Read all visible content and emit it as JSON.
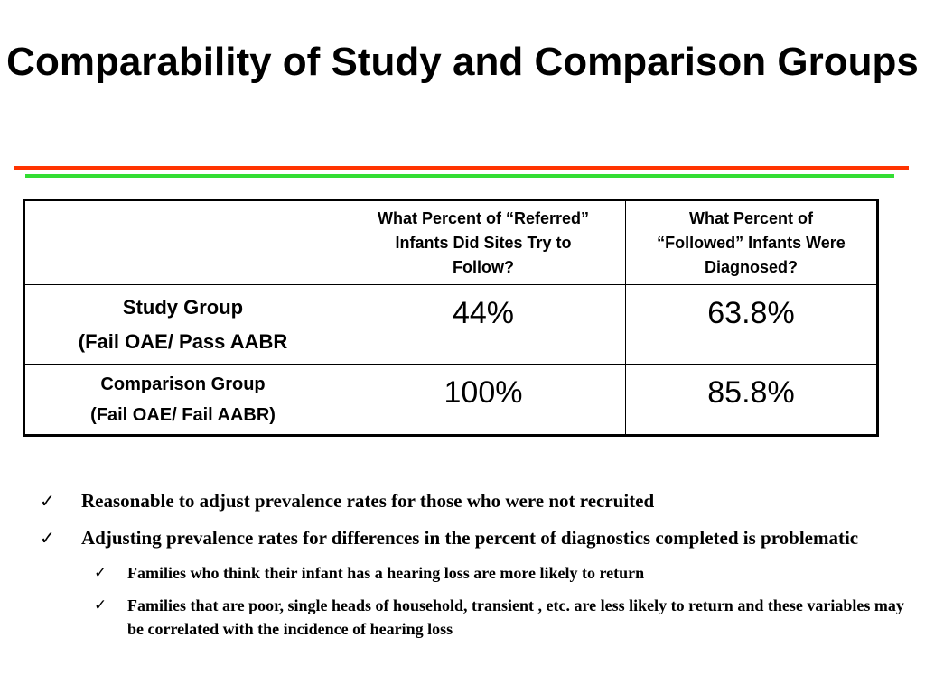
{
  "slide": {
    "title": "Comparability of Study and Comparison Groups"
  },
  "table": {
    "header": {
      "col0": "",
      "col1": "What Percent of “Referred” Infants Did Sites Try to Follow?",
      "col2": "What Percent of “Followed” Infants Were Diagnosed?"
    },
    "rows": [
      {
        "label_line1": "Study Group",
        "label_line2": "(Fail OAE/ Pass AABR",
        "col1": "44%",
        "col2": "63.8%"
      },
      {
        "label_line1": "Comparison Group",
        "label_line2": "(Fail OAE/ Fail AABR)",
        "col1": "100%",
        "col2": "85.8%"
      }
    ]
  },
  "bullets": [
    {
      "icon": "checkmark-icon",
      "text": "Reasonable to adjust prevalence rates for those who were not recruited"
    },
    {
      "icon": "checkmark-icon",
      "text": "Adjusting prevalence rates for differences in the percent of diagnostics completed is problematic"
    }
  ],
  "subbullets": [
    {
      "icon": "checkmark-icon",
      "text": "Families who think their infant has a hearing loss are more likely to return"
    },
    {
      "icon": "checkmark-icon",
      "text": "Families that are poor, single heads of household, transient , etc. are less likely to return and these variables may be correlated with the incidence of hearing loss"
    }
  ],
  "colors": {
    "rule_top": "#ff3300",
    "rule_bottom": "#33dd33"
  }
}
